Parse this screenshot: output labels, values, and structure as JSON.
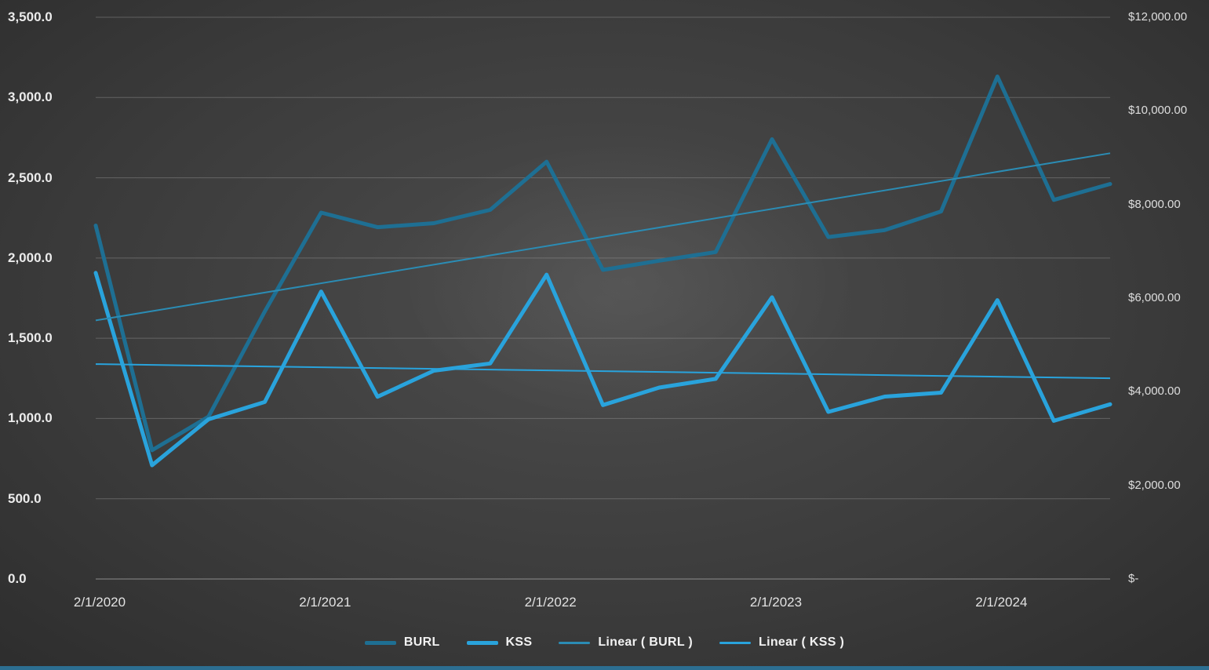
{
  "chart_data": {
    "type": "line",
    "title": "",
    "x": [
      "2/1/2020",
      "5/1/2020",
      "8/1/2020",
      "11/1/2020",
      "2/1/2021",
      "5/1/2021",
      "8/1/2021",
      "11/1/2021",
      "2/1/2022",
      "5/1/2022",
      "8/1/2022",
      "11/1/2022",
      "2/1/2023",
      "5/1/2023",
      "8/1/2023",
      "11/1/2023",
      "2/1/2024",
      "5/1/2024",
      "8/1/2024"
    ],
    "x_ticks": [
      {
        "index": 0,
        "label": "2/1/2020"
      },
      {
        "index": 4,
        "label": "2/1/2021"
      },
      {
        "index": 8,
        "label": "2/1/2022"
      },
      {
        "index": 12,
        "label": "2/1/2023"
      },
      {
        "index": 16,
        "label": "2/1/2024"
      }
    ],
    "left_axis": {
      "min": 0,
      "max": 3500,
      "tick_values": [
        3500,
        3000,
        2500,
        2000,
        1500,
        1000,
        500,
        0
      ],
      "ticks": [
        "3,500.0",
        "3,000.0",
        "2,500.0",
        "2,000.0",
        "1,500.0",
        "1,000.0",
        "500.0",
        "0.0"
      ]
    },
    "right_axis": {
      "min": 0,
      "max": 12000,
      "tick_values": [
        12000,
        10000,
        8000,
        6000,
        4000,
        2000,
        0
      ],
      "ticks": [
        "$12,000.00",
        "$10,000.00",
        "$8,000.00",
        "$6,000.00",
        "$4,000.00",
        "$2,000.00",
        "$-"
      ]
    },
    "series": [
      {
        "name": "BURL",
        "axis": "left",
        "color": "#1e6f93",
        "width": 5,
        "values": [
          2202,
          802,
          1011,
          1667,
          2283,
          2192,
          2217,
          2300,
          2600,
          1926,
          1983,
          2037,
          2740,
          2131,
          2174,
          2290,
          3131,
          2362,
          2461
        ]
      },
      {
        "name": "KSS",
        "axis": "right",
        "color": "#29a3dc",
        "width": 5,
        "values": [
          6540,
          2430,
          3411,
          3781,
          6141,
          3894,
          4450,
          4604,
          6501,
          3715,
          4090,
          4275,
          6018,
          3570,
          3897,
          3980,
          5956,
          3379,
          3732
        ]
      }
    ],
    "trendlines": [
      {
        "name": "Linear ( BURL )",
        "axis": "left",
        "color": "#2b8cb4",
        "width": 2,
        "start": 1611,
        "end": 2653
      },
      {
        "name": "Linear ( KSS )",
        "axis": "right",
        "color": "#29a3dc",
        "width": 2,
        "start": 4591,
        "end": 4289
      }
    ],
    "grid": true,
    "legend": {
      "position": "bottom",
      "items": [
        {
          "label": "BURL",
          "color": "#1e6f93",
          "thick": 5
        },
        {
          "label": "KSS",
          "color": "#29a3dc",
          "thick": 5
        },
        {
          "label": "Linear ( BURL )",
          "color": "#2b8cb4",
          "thick": 3
        },
        {
          "label": "Linear ( KSS )",
          "color": "#29a3dc",
          "thick": 3
        }
      ]
    }
  },
  "colors": {
    "background": "#3b3b3b",
    "gridline": "#9c9c9c",
    "axis_text": "#e2e2e2",
    "accent_bar": "#2c6e91"
  }
}
